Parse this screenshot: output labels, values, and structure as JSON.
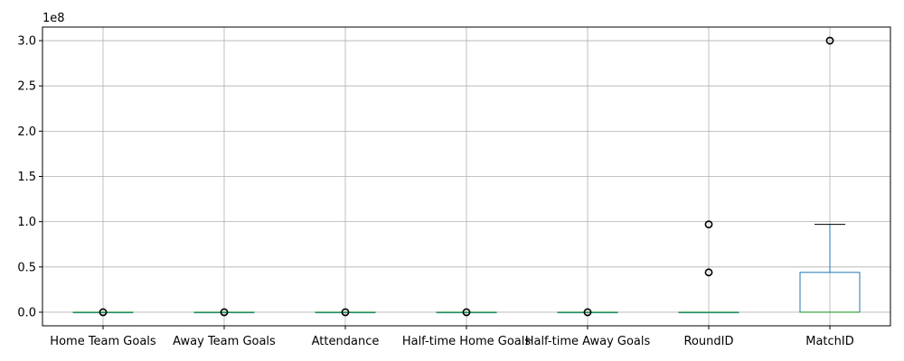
{
  "chart_data": {
    "type": "box",
    "title": "",
    "xlabel": "",
    "ylabel": "",
    "offset_label": "1e8",
    "ylim": [
      -0.15,
      3.15
    ],
    "yticks": [
      0.0,
      0.5,
      1.0,
      1.5,
      2.0,
      2.5,
      3.0
    ],
    "ytick_labels": [
      "0.0",
      "0.5",
      "1.0",
      "1.5",
      "2.0",
      "2.5",
      "3.0"
    ],
    "grid": true,
    "categories": [
      "Home Team Goals",
      "Away Team Goals",
      "Attendance",
      "Half-time Home Goals",
      "Half-time Away Goals",
      "RoundID",
      "MatchID"
    ],
    "boxes": [
      {
        "min": 0.0,
        "q1": 0.0,
        "median": 0.0,
        "q3": 0.0,
        "max": 0.0,
        "outliers": [
          0.0
        ]
      },
      {
        "min": 0.0,
        "q1": 0.0,
        "median": 0.0,
        "q3": 0.0,
        "max": 0.0,
        "outliers": [
          0.0
        ]
      },
      {
        "min": 0.0,
        "q1": 0.0,
        "median": 0.0,
        "q3": 0.0,
        "max": 0.0,
        "outliers": [
          0.0
        ]
      },
      {
        "min": 0.0,
        "q1": 0.0,
        "median": 0.0,
        "q3": 0.0,
        "max": 0.0,
        "outliers": [
          0.0
        ]
      },
      {
        "min": 0.0,
        "q1": 0.0,
        "median": 0.0,
        "q3": 0.0,
        "max": 0.0,
        "outliers": [
          0.0
        ]
      },
      {
        "min": 0.0,
        "q1": 0.0,
        "median": 0.0,
        "q3": 0.0,
        "max": 0.0,
        "outliers": [
          0.44,
          0.97
        ]
      },
      {
        "min": 0.0,
        "q1": 0.0,
        "median": 0.0,
        "q3": 0.44,
        "max": 0.97,
        "outliers": [
          3.0
        ]
      }
    ],
    "colors": {
      "box": "#1f77b4",
      "median": "#2ca02c",
      "whisker": "#1f77b4",
      "cap": "#000000",
      "outlier": "#000000",
      "grid": "#b0b0b0",
      "axes": "#000000"
    }
  }
}
